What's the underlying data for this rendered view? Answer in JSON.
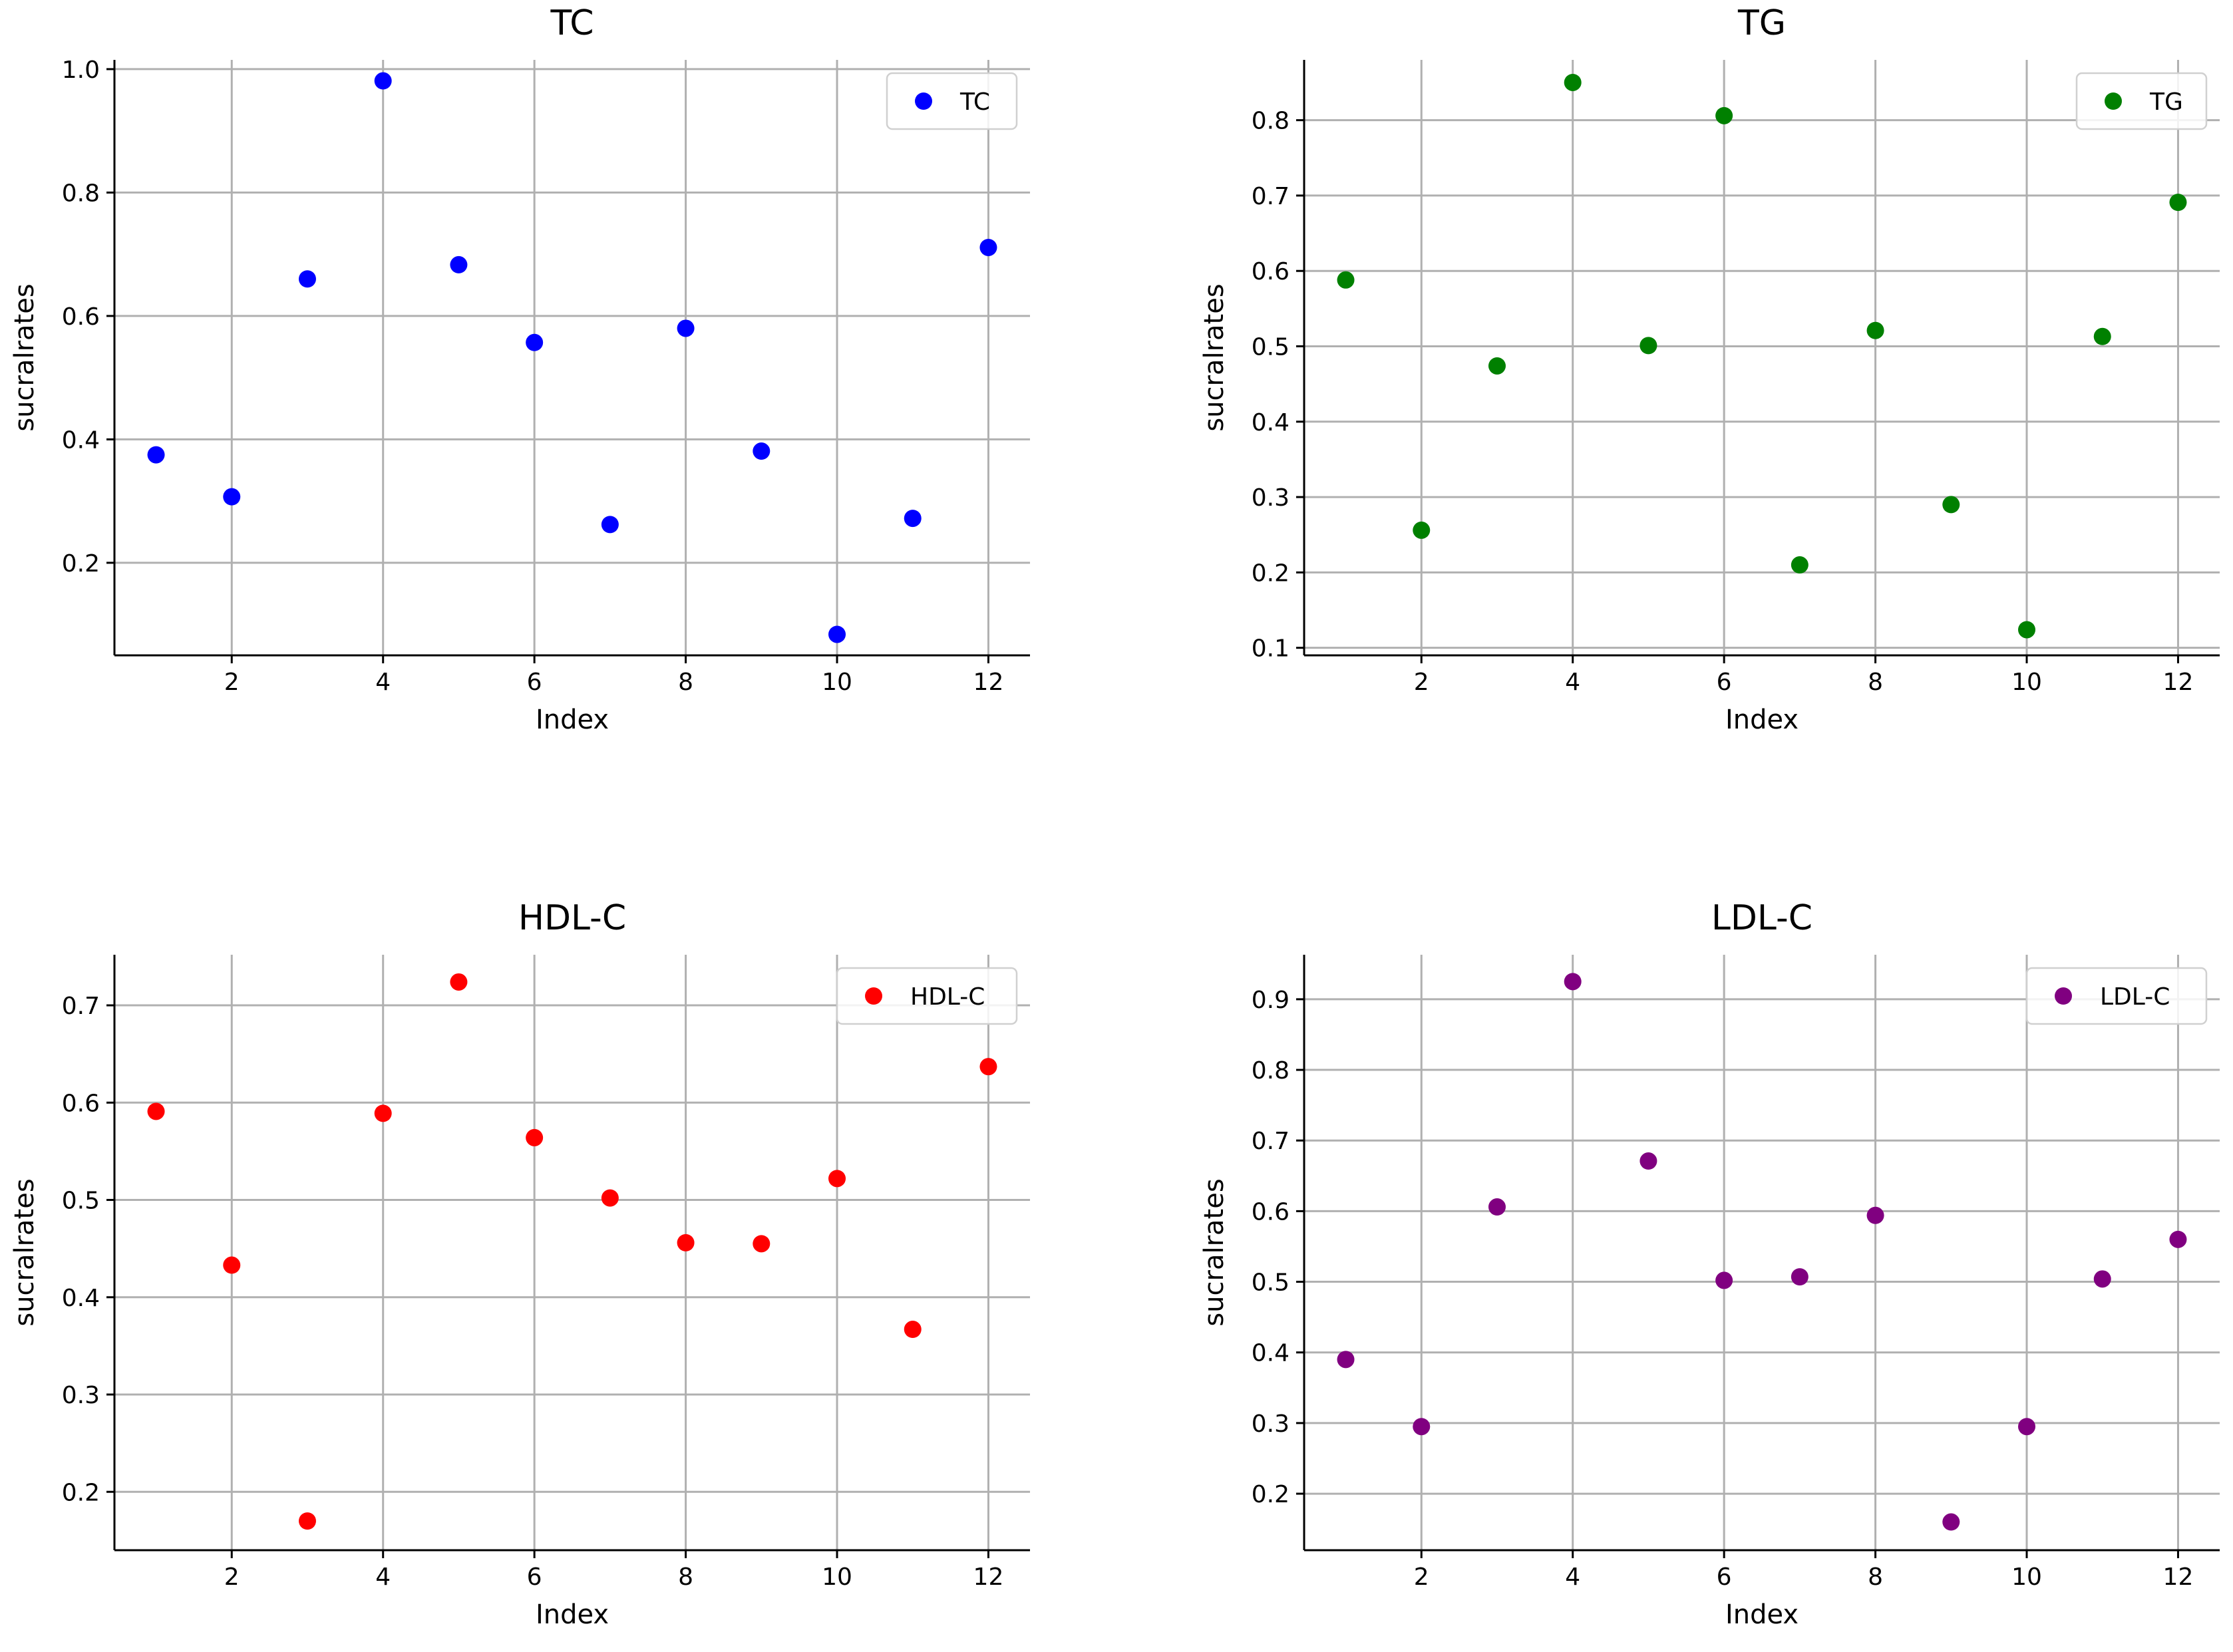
{
  "chart_data": [
    {
      "type": "scatter",
      "title": "TC",
      "xlabel": "Index",
      "ylabel": "sucralrates",
      "legend": "TC",
      "legend_position": "top-right",
      "color": "#0000ff",
      "grid": true,
      "x": [
        1,
        2,
        3,
        4,
        5,
        6,
        7,
        8,
        9,
        10,
        11,
        12
      ],
      "y": [
        0.375,
        0.307,
        0.66,
        0.981,
        0.683,
        0.557,
        0.262,
        0.58,
        0.381,
        0.084,
        0.272,
        0.711
      ],
      "xlim": [
        0.45,
        12.55
      ],
      "ylim": [
        0.05,
        1.015
      ],
      "xticks": [
        2,
        4,
        6,
        8,
        10,
        12
      ],
      "xtick_labels": [
        "2",
        "4",
        "6",
        "8",
        "10",
        "12"
      ],
      "yticks": [
        0.2,
        0.4,
        0.6,
        0.8,
        1.0
      ],
      "ytick_labels": [
        "0.2",
        "0.4",
        "0.6",
        "0.8",
        "1.0"
      ]
    },
    {
      "type": "scatter",
      "title": "TG",
      "xlabel": "Index",
      "ylabel": "sucralrates",
      "legend": "TG",
      "legend_position": "top-right",
      "color": "#008000",
      "grid": true,
      "x": [
        1,
        2,
        3,
        4,
        5,
        6,
        7,
        8,
        9,
        10,
        11,
        12
      ],
      "y": [
        0.588,
        0.256,
        0.474,
        0.85,
        0.501,
        0.806,
        0.21,
        0.521,
        0.29,
        0.124,
        0.513,
        0.691
      ],
      "xlim": [
        0.45,
        12.55
      ],
      "ylim": [
        0.09,
        0.88
      ],
      "xticks": [
        2,
        4,
        6,
        8,
        10,
        12
      ],
      "xtick_labels": [
        "2",
        "4",
        "6",
        "8",
        "10",
        "12"
      ],
      "yticks": [
        0.1,
        0.2,
        0.3,
        0.4,
        0.5,
        0.6,
        0.7,
        0.8
      ],
      "ytick_labels": [
        "0.1",
        "0.2",
        "0.3",
        "0.4",
        "0.5",
        "0.6",
        "0.7",
        "0.8"
      ]
    },
    {
      "type": "scatter",
      "title": "HDL-C",
      "xlabel": "Index",
      "ylabel": "sucralrates",
      "legend": "HDL-C",
      "legend_position": "top-right",
      "color": "#ff0000",
      "grid": true,
      "x": [
        1,
        2,
        3,
        4,
        5,
        6,
        7,
        8,
        9,
        10,
        11,
        12
      ],
      "y": [
        0.591,
        0.433,
        0.17,
        0.589,
        0.724,
        0.564,
        0.502,
        0.456,
        0.455,
        0.522,
        0.367,
        0.637
      ],
      "xlim": [
        0.45,
        12.55
      ],
      "ylim": [
        0.14,
        0.752
      ],
      "xticks": [
        2,
        4,
        6,
        8,
        10,
        12
      ],
      "xtick_labels": [
        "2",
        "4",
        "6",
        "8",
        "10",
        "12"
      ],
      "yticks": [
        0.2,
        0.3,
        0.4,
        0.5,
        0.6,
        0.7
      ],
      "ytick_labels": [
        "0.2",
        "0.3",
        "0.4",
        "0.5",
        "0.6",
        "0.7"
      ]
    },
    {
      "type": "scatter",
      "title": "LDL-C",
      "xlabel": "Index",
      "ylabel": "sucralrates",
      "legend": "LDL-C",
      "legend_position": "top-right",
      "color": "#800080",
      "grid": true,
      "x": [
        1,
        2,
        3,
        4,
        5,
        6,
        7,
        8,
        9,
        10,
        11,
        12
      ],
      "y": [
        0.39,
        0.295,
        0.606,
        0.925,
        0.671,
        0.502,
        0.507,
        0.594,
        0.16,
        0.295,
        0.504,
        0.56
      ],
      "xlim": [
        0.45,
        12.55
      ],
      "ylim": [
        0.12,
        0.963
      ],
      "xticks": [
        2,
        4,
        6,
        8,
        10,
        12
      ],
      "xtick_labels": [
        "2",
        "4",
        "6",
        "8",
        "10",
        "12"
      ],
      "yticks": [
        0.2,
        0.3,
        0.4,
        0.5,
        0.6,
        0.7,
        0.8,
        0.9
      ],
      "ytick_labels": [
        "0.2",
        "0.3",
        "0.4",
        "0.5",
        "0.6",
        "0.7",
        "0.8",
        "0.9"
      ]
    }
  ]
}
